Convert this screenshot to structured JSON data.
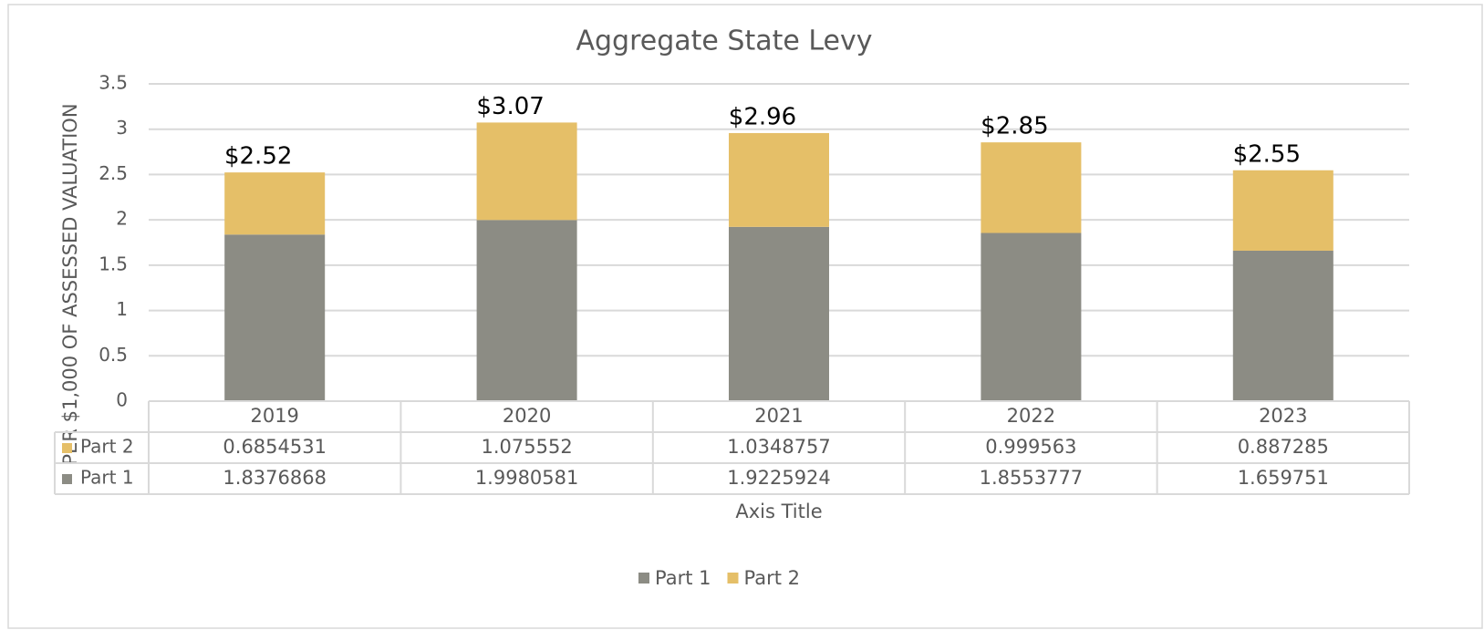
{
  "chart_data": {
    "type": "stacked_bar",
    "title": "Aggregate State Levy",
    "y_axis_label": "PER $1,000 OF ASSESSED VALUATION",
    "x_axis_label": "Axis Title",
    "categories": [
      "2019",
      "2020",
      "2021",
      "2022",
      "2023"
    ],
    "series": [
      {
        "name": "Part 1",
        "color": "#8c8c84",
        "values": [
          1.8376868,
          1.9980581,
          1.9225924,
          1.8553777,
          1.659751
        ]
      },
      {
        "name": "Part 2",
        "color": "#e5bf68",
        "values": [
          0.6854531,
          1.075552,
          1.0348757,
          0.999563,
          0.887285
        ]
      }
    ],
    "total_labels": [
      "$2.52",
      "$3.07",
      "$2.96",
      "$2.85",
      "$2.55"
    ],
    "ylim": [
      0,
      3.5
    ],
    "yticks": [
      0,
      0.5,
      1,
      1.5,
      2,
      2.5,
      3,
      3.5
    ],
    "grid": true,
    "legend": "bottom",
    "data_table": true
  }
}
